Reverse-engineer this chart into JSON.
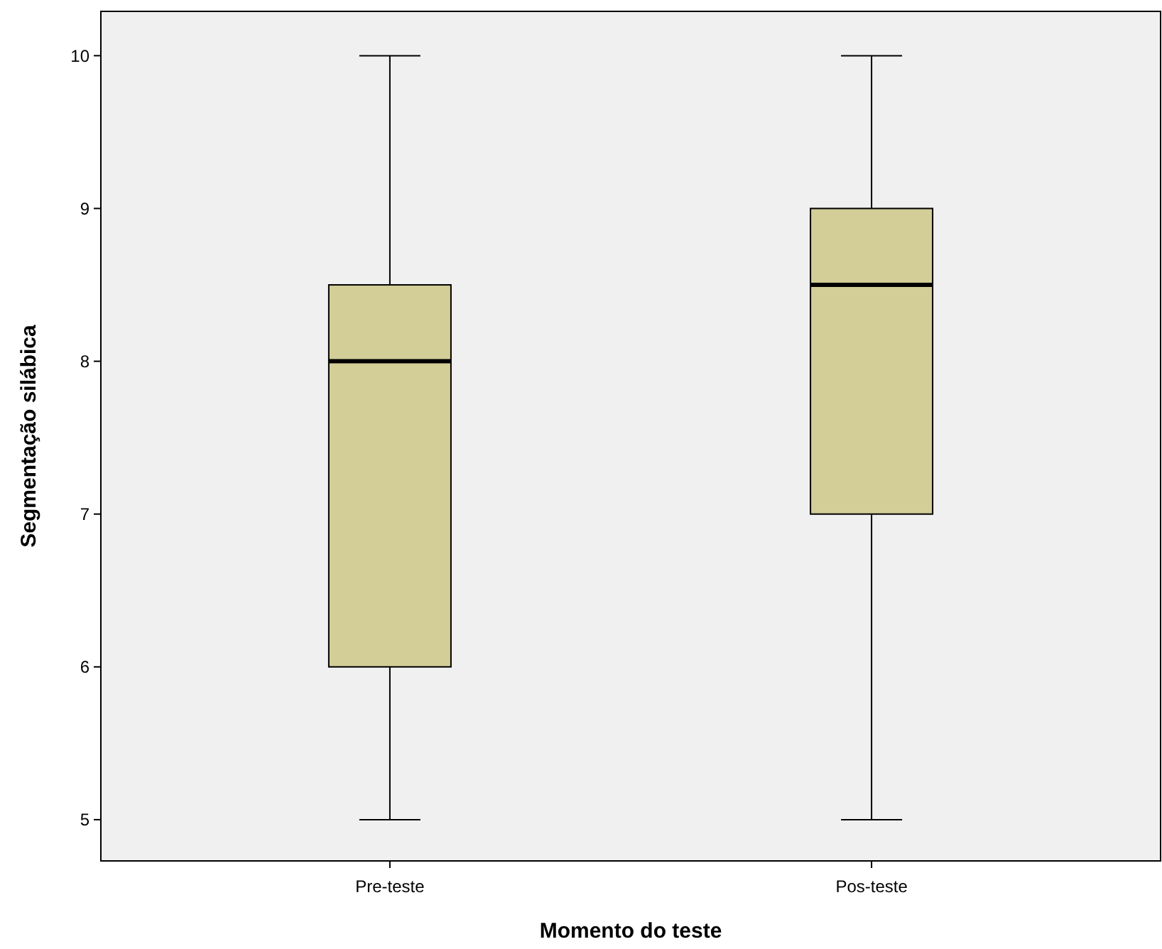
{
  "chart_data": {
    "type": "box",
    "xlabel": "Momento do teste",
    "ylabel": "Segmentação silábica",
    "categories": [
      "Pre-teste",
      "Pos-teste"
    ],
    "boxes": [
      {
        "low": 5,
        "q1": 6,
        "median": 8,
        "q3": 8.5,
        "high": 10
      },
      {
        "low": 5,
        "q1": 7,
        "median": 8.5,
        "q3": 9,
        "high": 10
      }
    ],
    "color": "#d3ce97",
    "ylim": [
      4.73,
      10.29
    ],
    "yticks": [
      5,
      6,
      7,
      8,
      9,
      10
    ],
    "grid": false
  }
}
